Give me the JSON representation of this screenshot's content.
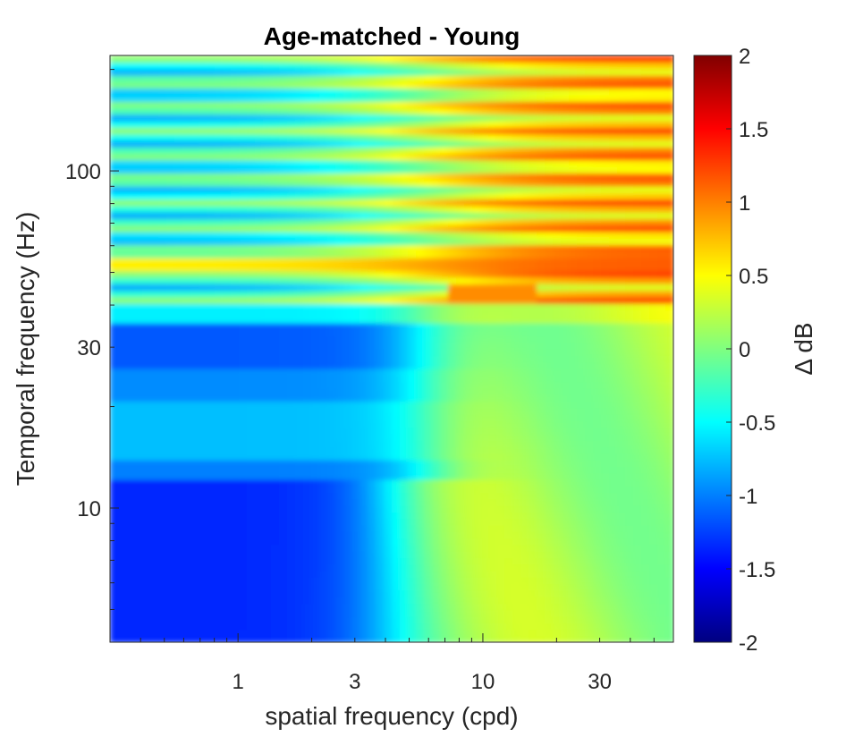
{
  "chart_data": {
    "type": "heatmap",
    "title": "Age-matched - Young",
    "xlabel": "spatial frequency (cpd)",
    "ylabel": "Temporal frequency (Hz)",
    "x_scale": "log",
    "y_scale": "log",
    "xlim": [
      0.3,
      60
    ],
    "ylim": [
      4,
      220
    ],
    "x_ticks": [
      1,
      3,
      10,
      30
    ],
    "x_tick_labels": [
      "1",
      "3",
      "10",
      "30"
    ],
    "y_ticks": [
      10,
      30,
      100
    ],
    "y_tick_labels": [
      "10",
      "30",
      "100"
    ],
    "colormap": "jet",
    "colorbar": {
      "label": "Δ dB",
      "range": [
        -2,
        2
      ],
      "ticks": [
        2,
        1.5,
        1,
        0.5,
        0,
        -0.5,
        -1,
        -1.5,
        -2
      ],
      "tick_labels": [
        "2",
        "1.5",
        "1",
        "0.5",
        "0",
        "-0.5",
        "-1",
        "-1.5",
        "-2"
      ]
    },
    "regions": [
      {
        "tf_range": [
          4,
          11
        ],
        "sf_range": [
          0.3,
          3
        ],
        "value": -1.4
      },
      {
        "tf_range": [
          11,
          20
        ],
        "sf_range": [
          0.3,
          5
        ],
        "value": -0.8
      },
      {
        "tf_range": [
          20,
          38
        ],
        "sf_range": [
          0.3,
          4
        ],
        "value": -1.1
      },
      {
        "tf_range": [
          4,
          40
        ],
        "sf_range": [
          10,
          60
        ],
        "value": 0.2
      },
      {
        "tf_range": [
          52,
          56
        ],
        "sf_range": [
          0.3,
          60
        ],
        "value": 0.9
      },
      {
        "tf_range": [
          60,
          220
        ],
        "sf_range": [
          10,
          60
        ],
        "value": 0.9
      }
    ]
  }
}
